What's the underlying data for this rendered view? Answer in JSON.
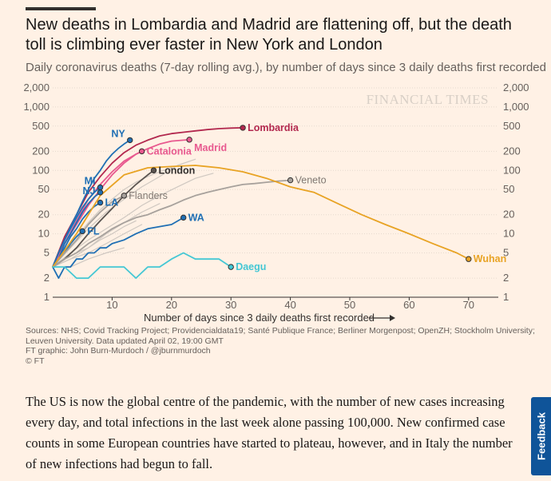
{
  "header": {
    "title": "New deaths in Lombardia and Madrid are flattening off, but the death toll is climbing ever faster in New York and London",
    "subtitle": "Daily coronavirus deaths (7-day rolling avg.), by number of days since 3 daily deaths first recorded"
  },
  "watermark": "FINANCIAL TIMES",
  "chart_data": {
    "type": "line",
    "title": "New deaths in Lombardia and Madrid are flattening off, but the death toll is climbing ever faster in New York and London",
    "subtitle": "Daily coronavirus deaths (7-day rolling avg.), by number of days since 3 daily deaths first recorded",
    "xlabel": "Number of days since 3 daily deaths first recorded",
    "ylabel": "",
    "xlim": [
      0,
      75
    ],
    "ylim": [
      1,
      2000
    ],
    "yscale": "log",
    "x_ticks": [
      10,
      20,
      30,
      40,
      50,
      60,
      70
    ],
    "y_ticks": [
      1,
      2,
      5,
      10,
      20,
      50,
      100,
      200,
      500,
      1000,
      2000
    ],
    "y_tick_labels": [
      "1",
      "2",
      "5",
      "10",
      "20",
      "50",
      "100",
      "200",
      "500",
      "1,000",
      "2,000"
    ],
    "series": [
      {
        "name": "Lombardia",
        "color": "#b2284e",
        "labeled": true,
        "x": [
          0,
          2,
          4,
          6,
          8,
          10,
          12,
          14,
          16,
          18,
          20,
          22,
          24,
          26,
          28,
          30,
          32
        ],
        "y": [
          3,
          9,
          20,
          45,
          80,
          130,
          190,
          250,
          300,
          350,
          380,
          400,
          420,
          440,
          455,
          465,
          470
        ]
      },
      {
        "name": "Madrid",
        "color": "#e8598f",
        "labeled": true,
        "x": [
          0,
          2,
          4,
          6,
          8,
          10,
          12,
          14,
          16,
          18,
          20,
          22,
          23
        ],
        "y": [
          3,
          7,
          16,
          35,
          60,
          95,
          140,
          180,
          220,
          260,
          290,
          300,
          305
        ]
      },
      {
        "name": "Catalonia",
        "color": "#e8598f",
        "labeled": true,
        "x": [
          0,
          2,
          4,
          6,
          8,
          10,
          12,
          14,
          15
        ],
        "y": [
          3,
          7,
          14,
          28,
          50,
          85,
          130,
          180,
          200
        ]
      },
      {
        "name": "NY",
        "color": "#1f6fb4",
        "labeled": true,
        "x": [
          0,
          1,
          2,
          3,
          4,
          5,
          6,
          7,
          8,
          9,
          10,
          11,
          12,
          13
        ],
        "y": [
          3,
          5,
          8,
          13,
          20,
          32,
          50,
          75,
          100,
          140,
          180,
          220,
          260,
          300
        ]
      },
      {
        "name": "London",
        "color": "#5b5551",
        "labeled": true,
        "x": [
          0,
          2,
          4,
          6,
          8,
          10,
          12,
          14,
          16,
          17
        ],
        "y": [
          3,
          4,
          6,
          10,
          16,
          25,
          40,
          60,
          85,
          100
        ]
      },
      {
        "name": "MI",
        "color": "#1f6fb4",
        "labeled": true,
        "x": [
          0,
          1,
          2,
          3,
          4,
          5,
          6,
          7,
          8
        ],
        "y": [
          3,
          5,
          8,
          12,
          18,
          26,
          35,
          45,
          54
        ]
      },
      {
        "name": "NJ",
        "color": "#1f6fb4",
        "labeled": true,
        "x": [
          0,
          1,
          2,
          3,
          4,
          5,
          6,
          7,
          8
        ],
        "y": [
          3,
          4,
          7,
          10,
          15,
          22,
          30,
          38,
          45
        ]
      },
      {
        "name": "LA",
        "color": "#1f6fb4",
        "labeled": true,
        "x": [
          0,
          1,
          2,
          3,
          4,
          5,
          6,
          7,
          8
        ],
        "y": [
          3,
          4,
          6,
          9,
          12,
          17,
          22,
          27,
          31
        ]
      },
      {
        "name": "FL",
        "color": "#1f6fb4",
        "labeled": true,
        "x": [
          0,
          1,
          2,
          3,
          4,
          5
        ],
        "y": [
          3,
          4,
          5,
          7,
          9,
          11
        ]
      },
      {
        "name": "WA",
        "color": "#1f6fb4",
        "labeled": true,
        "x": [
          0,
          1,
          2,
          3,
          4,
          5,
          6,
          7,
          8,
          9,
          10,
          12,
          14,
          16,
          18,
          20,
          22
        ],
        "y": [
          3,
          2,
          3,
          3,
          4,
          4,
          5,
          5,
          6,
          6,
          7,
          8,
          10,
          12,
          13,
          14,
          18
        ]
      },
      {
        "name": "Flanders",
        "color": "#a7a19c",
        "labeled": true,
        "x": [
          0,
          2,
          4,
          6,
          8,
          10,
          12
        ],
        "y": [
          3,
          5,
          8,
          14,
          22,
          32,
          40
        ]
      },
      {
        "name": "Veneto",
        "color": "#a7a19c",
        "labeled": true,
        "x": [
          0,
          2,
          4,
          6,
          8,
          10,
          12,
          14,
          16,
          18,
          20,
          22,
          24,
          26,
          28,
          30,
          32,
          34,
          36,
          38,
          40
        ],
        "y": [
          3,
          4,
          5,
          7,
          9,
          12,
          15,
          18,
          20,
          24,
          28,
          34,
          40,
          45,
          50,
          55,
          60,
          62,
          65,
          68,
          70
        ]
      },
      {
        "name": "Wuhan",
        "color": "#e8a324",
        "labeled": true,
        "x": [
          0,
          4,
          8,
          12,
          16,
          20,
          24,
          28,
          32,
          36,
          40,
          44,
          48,
          52,
          56,
          60,
          64,
          68,
          70
        ],
        "y": [
          3,
          10,
          40,
          85,
          110,
          115,
          120,
          110,
          95,
          75,
          55,
          45,
          30,
          20,
          14,
          10,
          7,
          5,
          4
        ]
      },
      {
        "name": "Daegu",
        "color": "#43c7d4",
        "labeled": true,
        "x": [
          0,
          2,
          4,
          6,
          8,
          10,
          12,
          14,
          16,
          18,
          20,
          22,
          24,
          26,
          28,
          30
        ],
        "y": [
          3,
          3,
          2,
          2,
          3,
          3,
          3,
          2,
          3,
          3,
          4,
          5,
          4,
          4,
          4,
          3
        ]
      },
      {
        "name": "",
        "color": "#cfc8c1",
        "labeled": false,
        "x": [
          0,
          3,
          6,
          9,
          12,
          15,
          18,
          21,
          24
        ],
        "y": [
          3,
          6,
          12,
          22,
          35,
          55,
          80,
          120,
          150
        ]
      },
      {
        "name": "",
        "color": "#cfc8c1",
        "labeled": false,
        "x": [
          0,
          3,
          6,
          9,
          12,
          15,
          18,
          21,
          24,
          27
        ],
        "y": [
          3,
          5,
          8,
          12,
          18,
          28,
          40,
          55,
          75,
          90
        ]
      },
      {
        "name": "",
        "color": "#cfc8c1",
        "labeled": false,
        "x": [
          0,
          3,
          6,
          9,
          12,
          15,
          18
        ],
        "y": [
          3,
          4,
          6,
          10,
          15,
          22,
          30
        ]
      },
      {
        "name": "",
        "color": "#cfc8c1",
        "labeled": false,
        "x": [
          0,
          3,
          6,
          9,
          12,
          15
        ],
        "y": [
          3,
          4,
          5,
          7,
          10,
          14
        ]
      },
      {
        "name": "",
        "color": "#cfc8c1",
        "labeled": false,
        "x": [
          0,
          3,
          6,
          9,
          12
        ],
        "y": [
          3,
          3,
          4,
          5,
          6
        ]
      },
      {
        "name": "",
        "color": "#cfc8c1",
        "labeled": false,
        "x": [
          0,
          2,
          4,
          6,
          8,
          10,
          12,
          14,
          16,
          18,
          20
        ],
        "y": [
          3,
          5,
          9,
          15,
          24,
          35,
          50,
          65,
          80,
          95,
          110
        ]
      },
      {
        "name": "",
        "color": "#cfc8c1",
        "labeled": false,
        "x": [
          0,
          2,
          4,
          6,
          8,
          10,
          12,
          14
        ],
        "y": [
          3,
          4,
          5,
          6,
          8,
          10,
          13,
          16
        ]
      }
    ]
  },
  "sources": {
    "line1": "Sources: NHS; Covid Tracking Project; Providencialdata19; Santé Publique France; Berliner Morgenpost; OpenZH; Stockholm University;",
    "line2": "Leuven University. Data updated April 02, 19:00 GMT",
    "line3": "FT graphic: John Burn-Murdoch / @jburnmurdoch",
    "line4": "© FT"
  },
  "article": {
    "body": "The US is now the global centre of the pandemic, with the number of new cases increasing every day, and total infections in the last week alone passing 100,000. New confirmed case counts in some European countries have started to plateau, however, and in Italy the number of new infections had begun to fall."
  },
  "feedback": {
    "label": "Feedback"
  }
}
